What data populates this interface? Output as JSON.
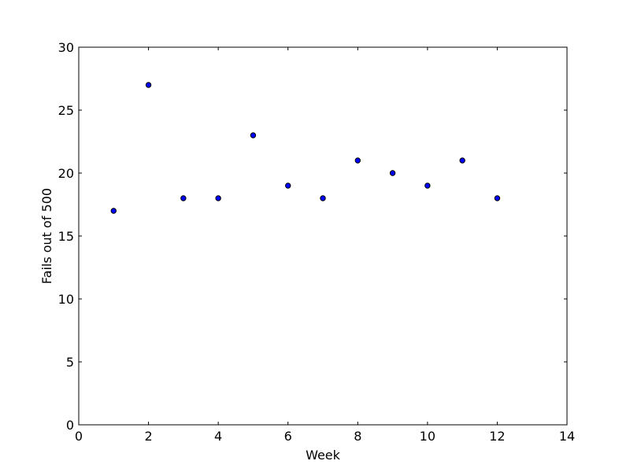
{
  "chart_data": {
    "type": "scatter",
    "title": "",
    "xlabel": "Week",
    "ylabel": "Fails out of 500",
    "xlim": [
      0,
      14
    ],
    "ylim": [
      0,
      30
    ],
    "xticks": [
      0,
      2,
      4,
      6,
      8,
      10,
      12,
      14
    ],
    "yticks": [
      0,
      5,
      10,
      15,
      20,
      25,
      30
    ],
    "x_tick_labels": [
      "0",
      "2",
      "4",
      "6",
      "8",
      "10",
      "12",
      "14"
    ],
    "y_tick_labels": [
      "0",
      "5",
      "10",
      "15",
      "20",
      "25",
      "30"
    ],
    "grid": false,
    "legend": "none",
    "series": [
      {
        "x": [
          1,
          2,
          3,
          4,
          5,
          6,
          7,
          8,
          9,
          10,
          11,
          12
        ],
        "y": [
          17,
          27,
          18,
          18,
          23,
          19,
          18,
          21,
          20,
          19,
          21,
          18
        ],
        "color": "#0000ff",
        "edge_color": "#000000"
      }
    ]
  }
}
